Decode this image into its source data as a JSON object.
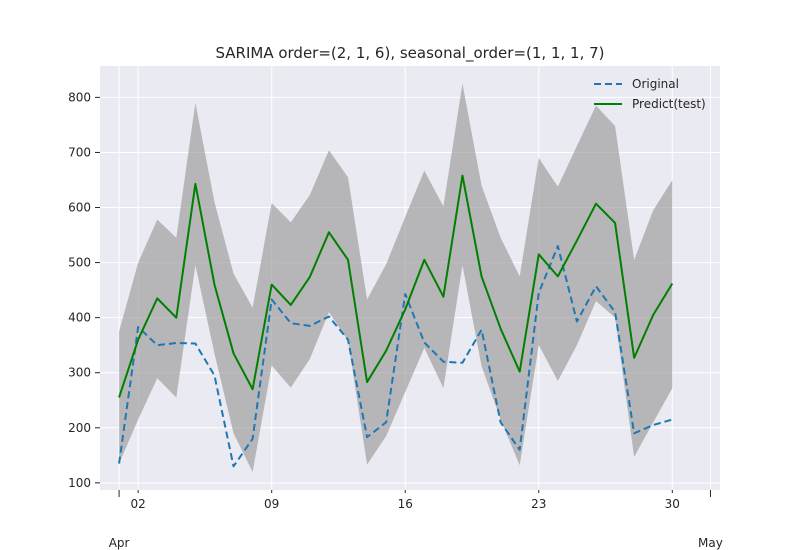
{
  "chart_data": {
    "type": "line",
    "title": "SARIMA order=(2, 1, 6), seasonal_order=(1, 1, 1, 7)",
    "xlabel": "",
    "ylabel": "",
    "x_tick_labels": [
      "02",
      "09",
      "16",
      "23",
      "30"
    ],
    "x_tick_days": [
      2,
      9,
      16,
      23,
      30
    ],
    "x_month_labels": [
      {
        "label": "Apr",
        "day": 1
      },
      {
        "label": "May",
        "day": 32
      }
    ],
    "y_ticks": [
      100,
      200,
      300,
      400,
      500,
      600,
      700,
      800
    ],
    "xlim": [
      0,
      32.5
    ],
    "ylim": [
      87,
      857
    ],
    "grid": true,
    "legend_position": "top-right",
    "colors": {
      "original": "#1f77b4",
      "predict": "#008000",
      "band": "#9a9a9a",
      "background": "#eaeaf2",
      "grid": "#ffffff"
    },
    "days": [
      1,
      2,
      3,
      4,
      5,
      6,
      7,
      8,
      9,
      10,
      11,
      12,
      13,
      14,
      15,
      16,
      17,
      18,
      19,
      20,
      21,
      22,
      23,
      24,
      25,
      26,
      27,
      28,
      29,
      30
    ],
    "series": [
      {
        "name": "Original",
        "style": "dashed",
        "values": [
          135,
          383,
          350,
          354,
          353,
          295,
          130,
          180,
          433,
          390,
          385,
          402,
          360,
          183,
          210,
          443,
          355,
          320,
          318,
          378,
          210,
          160,
          445,
          530,
          393,
          457,
          410,
          190,
          205,
          215
        ]
      },
      {
        "name": "Predict(test)",
        "style": "solid",
        "values": [
          255,
          360,
          435,
          400,
          643,
          460,
          335,
          270,
          460,
          423,
          474,
          555,
          505,
          283,
          340,
          415,
          505,
          438,
          658,
          475,
          380,
          302,
          515,
          475,
          540,
          607,
          572,
          327,
          405,
          462
        ]
      }
    ],
    "confidence_band": {
      "lower": [
        135,
        215,
        290,
        255,
        495,
        335,
        190,
        120,
        313,
        273,
        325,
        410,
        358,
        133,
        185,
        265,
        345,
        272,
        495,
        312,
        215,
        132,
        350,
        285,
        350,
        430,
        400,
        147,
        210,
        272
      ],
      "upper": [
        375,
        500,
        578,
        545,
        790,
        610,
        480,
        418,
        608,
        573,
        623,
        704,
        655,
        433,
        497,
        583,
        667,
        602,
        825,
        640,
        545,
        475,
        690,
        638,
        712,
        785,
        748,
        505,
        595,
        650
      ]
    }
  }
}
